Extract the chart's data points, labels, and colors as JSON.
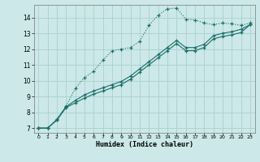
{
  "title": "",
  "xlabel": "Humidex (Indice chaleur)",
  "bg_color": "#cce8e8",
  "grid_color": "#aad0d0",
  "line_color": "#1a6e6a",
  "xlim": [
    -0.5,
    23.5
  ],
  "ylim": [
    6.7,
    14.8
  ],
  "yticks": [
    7,
    8,
    9,
    10,
    11,
    12,
    13,
    14
  ],
  "xticks": [
    0,
    1,
    2,
    3,
    4,
    5,
    6,
    7,
    8,
    9,
    10,
    11,
    12,
    13,
    14,
    15,
    16,
    17,
    18,
    19,
    20,
    21,
    22,
    23
  ],
  "line1_x": [
    0,
    1,
    2,
    3,
    4,
    5,
    6,
    7,
    8,
    9,
    10,
    11,
    12,
    13,
    14,
    15,
    16,
    17,
    18,
    19,
    20,
    21,
    22,
    23
  ],
  "line1_y": [
    7.0,
    7.0,
    7.5,
    8.4,
    9.5,
    10.2,
    10.6,
    11.3,
    11.9,
    12.0,
    12.1,
    12.5,
    13.5,
    14.15,
    14.55,
    14.6,
    13.9,
    13.85,
    13.65,
    13.55,
    13.65,
    13.6,
    13.5,
    13.65
  ],
  "line2_x": [
    0,
    1,
    2,
    3,
    4,
    5,
    6,
    7,
    8,
    9,
    10,
    11,
    12,
    13,
    14,
    15,
    16,
    17,
    18,
    19,
    20,
    21,
    22,
    23
  ],
  "line2_y": [
    7.0,
    7.0,
    7.55,
    8.35,
    8.75,
    9.1,
    9.35,
    9.55,
    9.75,
    9.95,
    10.3,
    10.75,
    11.2,
    11.65,
    12.1,
    12.55,
    12.1,
    12.1,
    12.3,
    12.85,
    13.0,
    13.1,
    13.25,
    13.55
  ],
  "line3_x": [
    0,
    1,
    2,
    3,
    4,
    5,
    6,
    7,
    8,
    9,
    10,
    11,
    12,
    13,
    14,
    15,
    16,
    17,
    18,
    19,
    20,
    21,
    22,
    23
  ],
  "line3_y": [
    7.0,
    7.0,
    7.5,
    8.3,
    8.6,
    8.9,
    9.15,
    9.35,
    9.55,
    9.75,
    10.1,
    10.55,
    11.0,
    11.45,
    11.9,
    12.35,
    11.9,
    11.9,
    12.1,
    12.65,
    12.8,
    12.9,
    13.05,
    13.55
  ]
}
